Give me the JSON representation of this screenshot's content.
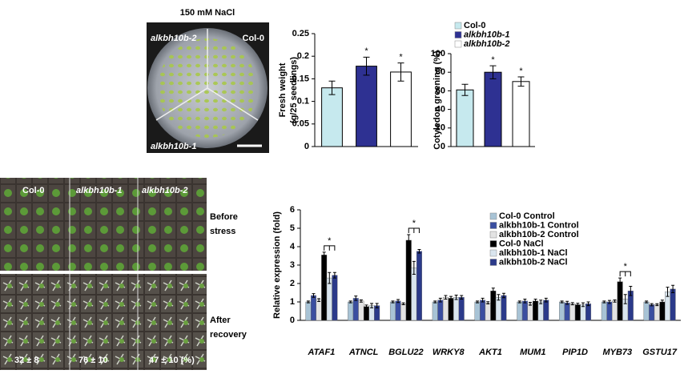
{
  "photos": {
    "plate_title": "150 mM NaCl",
    "plate_labels": [
      "alkbh10b-2",
      "Col-0",
      "alkbh10b-1"
    ],
    "tray_labels": [
      "Col-0",
      "alkbh10b-1",
      "alkbh10b-2"
    ],
    "before": [
      "Before",
      "stress"
    ],
    "after": [
      "After",
      "recovery"
    ],
    "survival": [
      "32 ± 8",
      "76 ± 10",
      "47 ± 10 (%)"
    ]
  },
  "chart_data": [
    {
      "type": "bar",
      "ylabel": [
        "Fresh weight",
        "(g/25 seedlings)"
      ],
      "ylim": [
        0,
        0.25
      ],
      "yticks": [
        0,
        0.05,
        0.1,
        0.15,
        0.2,
        0.25
      ],
      "series": [
        {
          "name": "Col-0",
          "color": "#c6e9ee",
          "values": [
            0.13
          ],
          "errors": [
            0.015
          ]
        },
        {
          "name": "alkbh10b-1",
          "color": "#2e3192",
          "values": [
            0.178
          ],
          "errors": [
            0.02
          ],
          "star": "*"
        },
        {
          "name": "alkbh10b-2",
          "color": "#ffffff",
          "values": [
            0.165
          ],
          "errors": [
            0.02
          ],
          "star": "*"
        }
      ]
    },
    {
      "type": "bar",
      "ylabel": [
        "Cotyledon greening (%)"
      ],
      "ylim": [
        0,
        100
      ],
      "yticks": [
        0,
        20,
        40,
        60,
        80,
        100
      ],
      "legend": "top",
      "series": [
        {
          "name": "Col-0",
          "color": "#c6e9ee",
          "values": [
            61
          ],
          "errors": [
            6
          ]
        },
        {
          "name": "alkbh10b-1",
          "color": "#2e3192",
          "values": [
            80
          ],
          "errors": [
            7
          ],
          "star": "*"
        },
        {
          "name": "alkbh10b-2",
          "color": "#ffffff",
          "values": [
            70
          ],
          "errors": [
            5
          ],
          "star": "*"
        }
      ]
    },
    {
      "type": "grouped-bar",
      "ylabel": [
        "Relative expression (fold)"
      ],
      "ylim": [
        0,
        6
      ],
      "yticks": [
        0,
        1,
        2,
        3,
        4,
        5,
        6
      ],
      "legend": "right",
      "categories": [
        "ATAF1",
        "ATNCL",
        "BGLU22",
        "WRKY8",
        "AKT1",
        "MUM1",
        "PIP1D",
        "MYB73",
        "GSTU17"
      ],
      "significance": [
        "*",
        null,
        "*",
        null,
        null,
        null,
        null,
        "*",
        null
      ],
      "series": [
        {
          "name": "Col-0 Control",
          "color": "#a8c3d5",
          "values": [
            1,
            1,
            1,
            1,
            1,
            1,
            1,
            1,
            1
          ],
          "errors": [
            0.05,
            0.05,
            0.05,
            0.05,
            0.05,
            0.05,
            0.05,
            0.05,
            0.05
          ]
        },
        {
          "name": "alkbh10b-1 Control",
          "color": "#3a4ea0",
          "values": [
            1.35,
            1.2,
            1.05,
            1.1,
            1.1,
            1.05,
            0.95,
            1.0,
            0.85
          ],
          "errors": [
            0.1,
            0.12,
            0.08,
            0.1,
            0.1,
            0.1,
            0.08,
            0.08,
            0.06
          ]
        },
        {
          "name": "alkbh10b-2 Control",
          "color": "#e3e3e3",
          "values": [
            1.1,
            1.05,
            0.9,
            1.25,
            0.95,
            0.9,
            0.9,
            1.05,
            0.85
          ],
          "errors": [
            0.08,
            0.06,
            0.05,
            0.1,
            0.06,
            0.08,
            0.06,
            0.06,
            0.05
          ]
        },
        {
          "name": "Col-0 NaCl",
          "color": "#000000",
          "values": [
            3.55,
            0.75,
            4.35,
            1.2,
            1.6,
            1.05,
            0.85,
            2.1,
            1.0
          ],
          "errors": [
            0.15,
            0.08,
            0.3,
            0.1,
            0.15,
            0.1,
            0.08,
            0.2,
            0.1
          ]
        },
        {
          "name": "alkbh10b-1 NaCl",
          "color": "#d9e5ee",
          "values": [
            2.3,
            0.8,
            2.85,
            1.25,
            1.25,
            1.0,
            0.85,
            1.15,
            1.55
          ],
          "errors": [
            0.3,
            0.12,
            0.35,
            0.12,
            0.15,
            0.1,
            0.1,
            0.25,
            0.25
          ]
        },
        {
          "name": "alkbh10b-2 NaCl",
          "color": "#2b3a8a",
          "values": [
            2.45,
            0.8,
            3.75,
            1.25,
            1.35,
            1.1,
            0.9,
            1.6,
            1.7
          ],
          "errors": [
            0.15,
            0.12,
            0.1,
            0.1,
            0.12,
            0.1,
            0.1,
            0.25,
            0.2
          ]
        }
      ]
    }
  ]
}
